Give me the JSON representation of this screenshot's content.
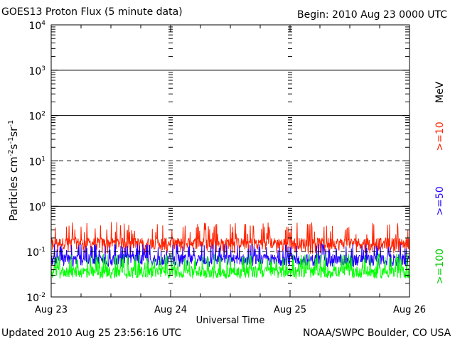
{
  "header": {
    "title": "GOES13 Proton Flux (5 minute data)",
    "begin": "Begin: 2010 Aug 23 0000 UTC"
  },
  "footer": {
    "updated": "Updated 2010 Aug 25 23:56:16 UTC",
    "credit": "NOAA/SWPC Boulder, CO USA"
  },
  "legend": {
    "unit": "MeV",
    "ge10": ">=10",
    "ge50": ">=50",
    "ge100": ">=100"
  },
  "chart_data": {
    "type": "line",
    "title": "GOES13 Proton Flux (5 minute data)",
    "xlabel": "Universal Time",
    "ylabel": "Particles cm-2 s-1 sr-1",
    "y_scale": "log",
    "ylim": [
      0.01,
      10000
    ],
    "xlim": [
      "2010-08-23 00:00",
      "2010-08-26 00:00"
    ],
    "x_ticks": [
      "Aug 23",
      "Aug 24",
      "Aug 25",
      "Aug 26"
    ],
    "y_ticks": [
      {
        "base": "10",
        "exp": "-2"
      },
      {
        "base": "10",
        "exp": "-1"
      },
      {
        "base": "10",
        "exp": "0"
      },
      {
        "base": "10",
        "exp": "1"
      },
      {
        "base": "10",
        "exp": "2"
      },
      {
        "base": "10",
        "exp": "3"
      },
      {
        "base": "10",
        "exp": "4"
      }
    ],
    "grid": {
      "solid_decades": [
        0,
        2,
        3
      ],
      "dashed_decades": [
        -1,
        1
      ]
    },
    "series": [
      {
        "name": ">=10 MeV",
        "color": "#ff2200",
        "typical": 0.15,
        "min": 0.09,
        "max": 0.45
      },
      {
        "name": ">=50 MeV",
        "color": "#2200ff",
        "typical": 0.065,
        "min": 0.045,
        "max": 0.15
      },
      {
        "name": ">=100 MeV",
        "color": "#00ff00",
        "typical": 0.035,
        "min": 0.025,
        "max": 0.09
      }
    ]
  }
}
